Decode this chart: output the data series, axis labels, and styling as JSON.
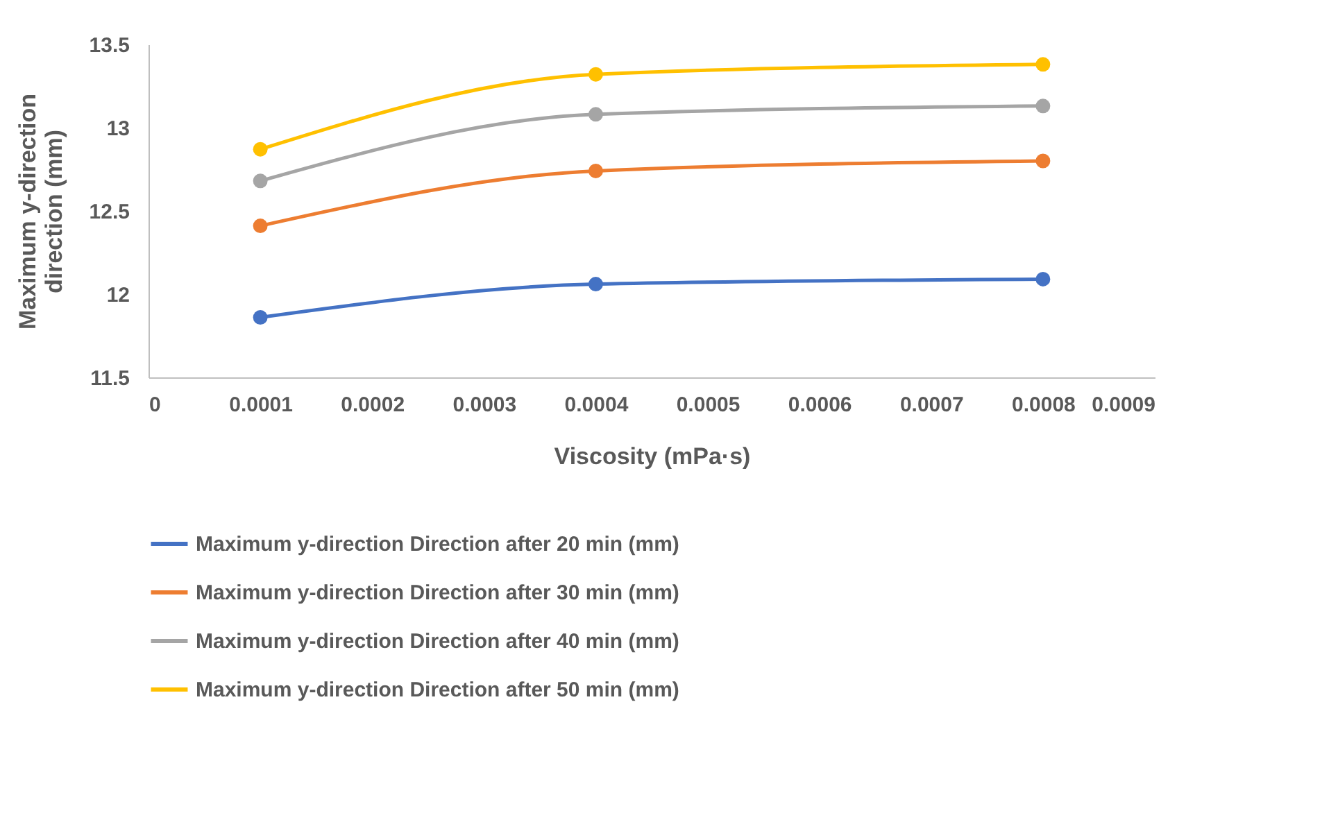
{
  "chart_data": {
    "type": "line",
    "xlabel": "Viscosity (mPa·s)",
    "ylabel": "Maximum y-direction\ndirection (mm)",
    "x": [
      0.0001,
      0.0004,
      0.0008
    ],
    "series": [
      {
        "name": "Maximum y-direction Direction after 20 min (mm)",
        "color": "#4472c4",
        "values": [
          11.86,
          12.06,
          12.09
        ]
      },
      {
        "name": "Maximum y-direction Direction after 30 min (mm)",
        "color": "#ed7d31",
        "values": [
          12.41,
          12.74,
          12.8
        ]
      },
      {
        "name": "Maximum y-direction Direction after 40 min (mm)",
        "color": "#a5a5a5",
        "values": [
          12.68,
          13.08,
          13.13
        ]
      },
      {
        "name": "Maximum y-direction Direction after 50 min (mm)",
        "color": "#ffc000",
        "values": [
          12.87,
          13.32,
          13.38
        ]
      }
    ],
    "xlim": [
      0,
      0.0009
    ],
    "xticks": [
      0,
      0.0001,
      0.0002,
      0.0003,
      0.0004,
      0.0005,
      0.0006,
      0.0007,
      0.0008,
      0.0009
    ],
    "ylim": [
      11.5,
      13.5
    ],
    "yticks": [
      11.5,
      12,
      12.5,
      13,
      13.5
    ],
    "grid": false,
    "legend": "bottom",
    "marker": "circle",
    "line_style": "solid"
  }
}
